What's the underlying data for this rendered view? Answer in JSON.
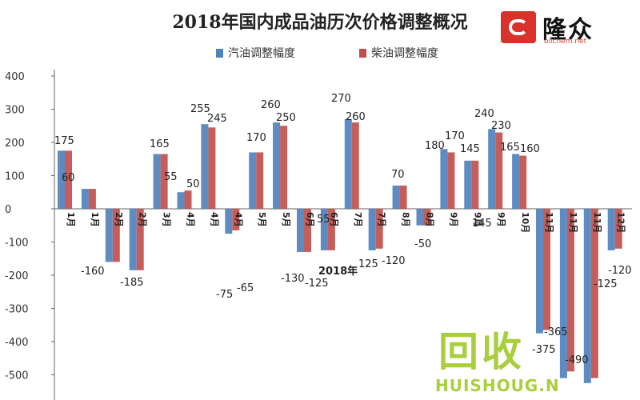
{
  "title": "2018年国内成品油历次价格调整概况",
  "logo": {
    "text": "隆众",
    "url": "oilchem.net"
  },
  "watermark": {
    "text": "回收",
    "sub": "HUISHOUG.N"
  },
  "chart_data": {
    "type": "bar",
    "title": "2018年国内成品油历次价格调整概况",
    "xlabel": "2018年",
    "ylabel": "",
    "ylim": [
      -500,
      400
    ],
    "yticks": [
      400,
      300,
      200,
      100,
      0,
      -100,
      -200,
      -300,
      -400,
      -500
    ],
    "grid": false,
    "legend_position": "top",
    "categories": [
      "1月",
      "1月",
      "2月",
      "2月",
      "3月",
      "4月",
      "4月",
      "4月",
      "5月",
      "5月",
      "6月",
      "6月",
      "7月",
      "7月",
      "8月",
      "8月",
      "9月",
      "9月",
      "9月",
      "10月",
      "11月",
      "11月",
      "11月",
      "12月"
    ],
    "series": [
      {
        "name": "汽油调整幅度",
        "color": "#4f81bd",
        "values": [
          175,
          60,
          -160,
          -185,
          165,
          50,
          255,
          -75,
          170,
          260,
          -130,
          -125,
          270,
          -125,
          70,
          -50,
          180,
          145,
          240,
          165,
          -375,
          -510,
          -525,
          -125
        ]
      },
      {
        "name": "柴油调整幅度",
        "color": "#c0504d",
        "values": [
          175,
          60,
          -160,
          -185,
          165,
          55,
          245,
          -65,
          170,
          250,
          -130,
          -125,
          260,
          -120,
          70,
          -50,
          170,
          145,
          230,
          160,
          -365,
          -490,
          -510,
          -120
        ]
      }
    ],
    "data_labels": [
      "175",
      "60",
      "-160",
      "-185",
      "165",
      "55",
      "50",
      "255",
      "245",
      "-75",
      "-65",
      "170",
      "260",
      "250",
      "-130",
      "-125",
      "55",
      "270",
      "260",
      "125",
      "-120",
      "70",
      "-50",
      "180",
      "170",
      "145",
      "145",
      "240",
      "230",
      "165",
      "160",
      "-375",
      "-365",
      "-490",
      "-125",
      "-120"
    ]
  }
}
